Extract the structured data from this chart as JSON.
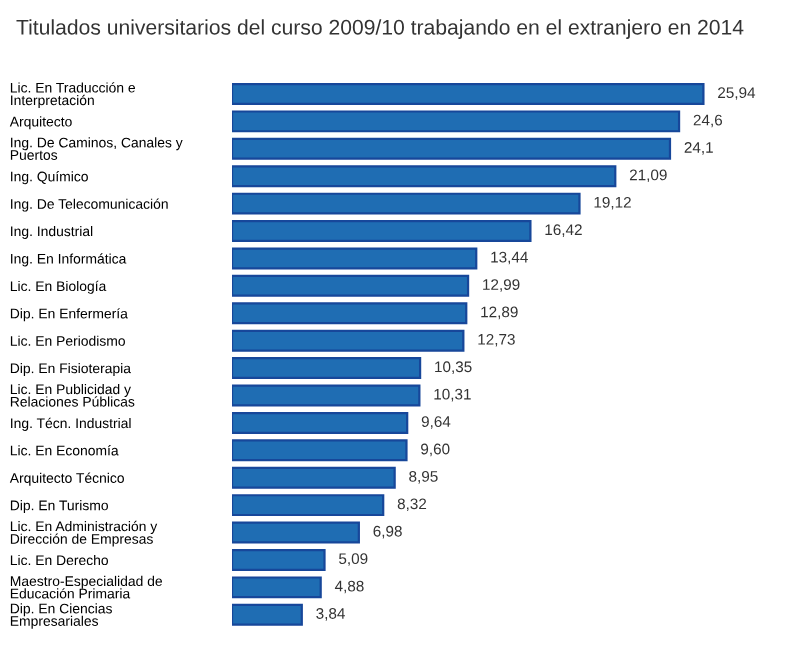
{
  "chart_data": {
    "type": "bar",
    "orientation": "horizontal",
    "title": "Titulados universitarios del curso 2009/10 trabajando en el extranjero en 2014",
    "categories": [
      "Lic. En Traducción e\nInterpretación",
      "Arquitecto",
      "Ing. De Caminos, Canales y\nPuertos",
      "Ing. Químico",
      "Ing. De Telecomunicación",
      "Ing. Industrial",
      "Ing. En Informática",
      "Lic. En Biología",
      "Dip. En Enfermería",
      "Lic. En Periodismo",
      "Dip. En Fisioterapia",
      "Lic. En Publicidad y\nRelaciones Públicas",
      "Ing. Técn. Industrial",
      "Lic. En Economía",
      "Arquitecto Técnico",
      "Dip. En Turismo",
      "Lic. En Administración y\nDirección de Empresas",
      "Lic. En Derecho",
      "Maestro-Especialidad de\nEducación Primaria",
      "Dip. En Ciencias\nEmpresariales"
    ],
    "values": [
      25.94,
      24.6,
      24.1,
      21.09,
      19.12,
      16.42,
      13.44,
      12.99,
      12.89,
      12.73,
      10.35,
      10.31,
      9.64,
      9.6,
      8.95,
      8.32,
      6.98,
      5.09,
      4.88,
      3.84
    ],
    "value_labels": [
      "25,94",
      "24,6",
      "24,1",
      "21,09",
      "19,12",
      "16,42",
      "13,44",
      "12,99",
      "12,89",
      "12,73",
      "10,35",
      "10,31",
      "9,64",
      "9,60",
      "8,95",
      "8,32",
      "6,98",
      "5,09",
      "4,88",
      "3,84"
    ],
    "color": "#1f6db3",
    "grid": false,
    "legend": false
  }
}
